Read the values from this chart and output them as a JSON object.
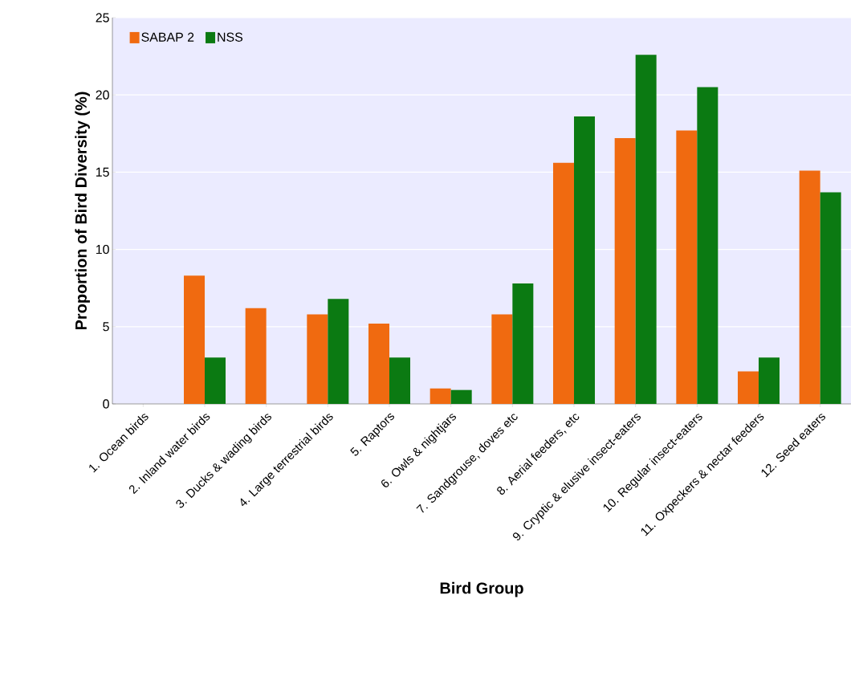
{
  "chart_data": {
    "type": "bar",
    "xlabel": "Bird Group",
    "ylabel": "Proportion of Bird Diversity (%)",
    "categories": [
      "1. Ocean birds",
      "2. Inland water birds",
      "3. Ducks & wading birds",
      "4. Large terrestrial birds",
      "5. Raptors",
      "6. Owls & nightjars",
      "7. Sandgrouse, doves etc",
      "8. Aerial feeders, etc",
      "9. Cryptic & elusive insect-eaters",
      "10. Regular insect-eaters",
      "11. Oxpeckers & nectar feeders",
      "12. Seed eaters"
    ],
    "series": [
      {
        "name": "SABAP 2",
        "color": "#f06a10",
        "values": [
          0,
          8.3,
          6.2,
          5.8,
          5.2,
          1.0,
          5.8,
          15.6,
          17.2,
          17.7,
          2.1,
          15.1
        ]
      },
      {
        "name": "NSS",
        "color": "#0b7a12",
        "values": [
          0,
          3.0,
          0,
          6.8,
          3.0,
          0.9,
          7.8,
          18.6,
          22.6,
          20.5,
          3.0,
          13.7
        ]
      }
    ],
    "ylim": [
      0,
      25
    ],
    "yticks": [
      0,
      5,
      10,
      15,
      20,
      25
    ],
    "grid": "y",
    "legend": "top left"
  }
}
